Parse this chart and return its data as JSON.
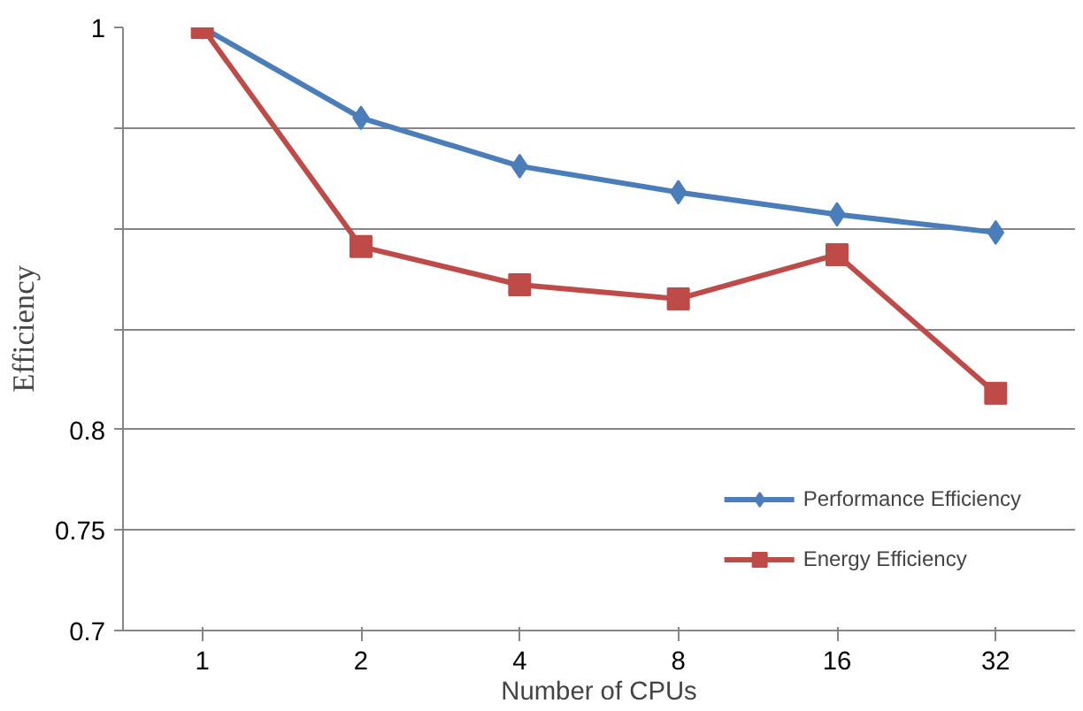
{
  "chart_data": {
    "type": "line",
    "xlabel": "Number of CPUs",
    "ylabel": "Efficiency",
    "categories": [
      "1",
      "2",
      "4",
      "8",
      "16",
      "32"
    ],
    "series": [
      {
        "name": "Performance Efficiency",
        "color": "#4a7ebb",
        "values": [
          1.0,
          0.955,
          0.931,
          0.918,
          0.907,
          0.898
        ],
        "marker": "diamond"
      },
      {
        "name": "Energy Efficiency",
        "color": "#be4b48",
        "values": [
          1.0,
          0.891,
          0.872,
          0.865,
          0.887,
          0.818
        ],
        "marker": "square"
      }
    ],
    "ylim": [
      0.7,
      1.0
    ],
    "yticks": [
      0.7,
      0.75,
      0.8,
      {
        "value": 0.85,
        "label": null
      },
      {
        "value": 0.9,
        "label": null
      },
      {
        "value": 0.95,
        "label": null
      },
      1
    ],
    "grid": "y",
    "legend": "bottom right",
    "line_style": "solid"
  }
}
